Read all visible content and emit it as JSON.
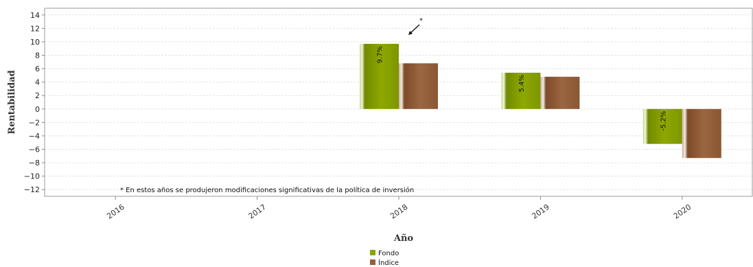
{
  "chart_data": {
    "type": "bar",
    "xlabel": "Año",
    "ylabel": "Rentabilidad",
    "categories": [
      "2016",
      "2017",
      "2018",
      "2019",
      "2020"
    ],
    "series": [
      {
        "name": "Fondo",
        "values": [
          null,
          null,
          9.7,
          5.4,
          -5.2
        ],
        "color": "#8aa400"
      },
      {
        "name": "Índice",
        "values": [
          null,
          null,
          6.8,
          4.8,
          -7.3
        ],
        "color": "#96603c"
      }
    ],
    "data_labels": [
      "",
      "",
      "9.7%",
      "5.4%",
      "-5.2%"
    ],
    "ylim": [
      -13,
      15
    ],
    "yticks": [
      14,
      12,
      10,
      8,
      6,
      4,
      2,
      0,
      -2,
      -4,
      -6,
      -8,
      -10,
      -12
    ],
    "grid": true,
    "legend_position": "bottom-center",
    "annotation": {
      "marker": "*",
      "category": "2018"
    },
    "footnote": "* En estos años se produjeron modificaciones significativas de la política de inversión"
  }
}
